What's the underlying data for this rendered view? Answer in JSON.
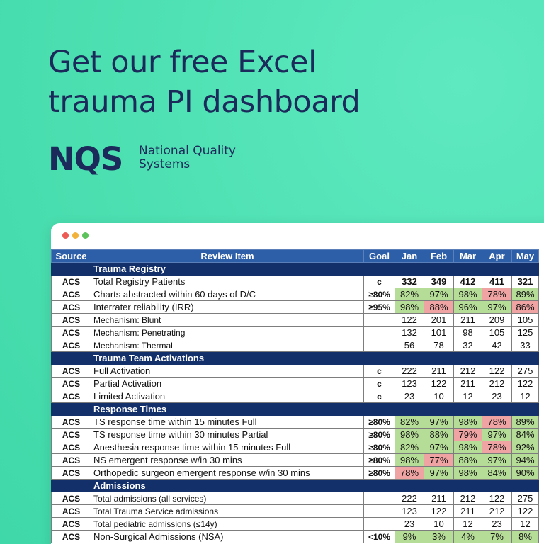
{
  "headline": {
    "line1": "Get our free Excel",
    "line2": "trauma PI dashboard"
  },
  "brand": {
    "logo": "NQS",
    "name_line1": "National Quality",
    "name_line2": "Systems"
  },
  "table": {
    "headers": {
      "source": "Source",
      "item": "Review Item",
      "goal": "Goal",
      "months": [
        "Jan",
        "Feb",
        "Mar",
        "Apr",
        "May"
      ]
    },
    "status_colors": {
      "good": "#b6dd98",
      "bad": "#efa3a3"
    },
    "sections": [
      {
        "title": "Trauma Registry",
        "rows": [
          {
            "source": "ACS",
            "item": "Total Registry Patients",
            "goal": "c",
            "bold": true,
            "values": [
              "332",
              "349",
              "412",
              "411",
              "321"
            ],
            "status": [
              "",
              "",
              "",
              "",
              ""
            ]
          },
          {
            "source": "ACS",
            "item": "Charts abstracted within 60 days of D/C",
            "goal": "≥80%",
            "values": [
              "82%",
              "97%",
              "98%",
              "78%",
              "89%"
            ],
            "status": [
              "g",
              "g",
              "g",
              "r",
              "g"
            ]
          },
          {
            "source": "ACS",
            "item": "Interrater reliability (IRR)",
            "goal": "≥95%",
            "values": [
              "98%",
              "88%",
              "96%",
              "97%",
              "86%"
            ],
            "status": [
              "g",
              "r",
              "g",
              "g",
              "r"
            ]
          },
          {
            "source": "ACS",
            "item": "Mechanism: Blunt",
            "goal": "",
            "small": true,
            "values": [
              "122",
              "201",
              "211",
              "209",
              "105"
            ],
            "status": [
              "",
              "",
              "",
              "",
              ""
            ]
          },
          {
            "source": "ACS",
            "item": "Mechanism: Penetrating",
            "goal": "",
            "small": true,
            "values": [
              "132",
              "101",
              "98",
              "105",
              "125"
            ],
            "status": [
              "",
              "",
              "",
              "",
              ""
            ]
          },
          {
            "source": "ACS",
            "item": "Mechanism: Thermal",
            "goal": "",
            "small": true,
            "values": [
              "56",
              "78",
              "32",
              "42",
              "33"
            ],
            "status": [
              "",
              "",
              "",
              "",
              ""
            ]
          }
        ]
      },
      {
        "title": "Trauma Team Activations",
        "rows": [
          {
            "source": "ACS",
            "item": "Full Activation",
            "goal": "c",
            "values": [
              "222",
              "211",
              "212",
              "122",
              "275"
            ],
            "status": [
              "",
              "",
              "",
              "",
              ""
            ]
          },
          {
            "source": "ACS",
            "item": "Partial Activation",
            "goal": "c",
            "values": [
              "123",
              "122",
              "211",
              "212",
              "122"
            ],
            "status": [
              "",
              "",
              "",
              "",
              ""
            ]
          },
          {
            "source": "ACS",
            "item": "Limited Activation",
            "goal": "c",
            "values": [
              "23",
              "10",
              "12",
              "23",
              "12"
            ],
            "status": [
              "",
              "",
              "",
              "",
              ""
            ]
          }
        ]
      },
      {
        "title": "Response Times",
        "rows": [
          {
            "source": "ACS",
            "item": "TS response time within 15 minutes Full",
            "goal": "≥80%",
            "values": [
              "82%",
              "97%",
              "98%",
              "78%",
              "89%"
            ],
            "status": [
              "g",
              "g",
              "g",
              "r",
              "g"
            ]
          },
          {
            "source": "ACS",
            "item": "TS response time within 30 minutes Partial",
            "goal": "≥80%",
            "values": [
              "98%",
              "88%",
              "79%",
              "97%",
              "84%"
            ],
            "status": [
              "g",
              "g",
              "r",
              "g",
              "g"
            ]
          },
          {
            "source": "ACS",
            "item": "Anesthesia response time within 15 minutes Full",
            "goal": "≥80%",
            "values": [
              "82%",
              "97%",
              "98%",
              "78%",
              "92%"
            ],
            "status": [
              "g",
              "g",
              "g",
              "r",
              "g"
            ]
          },
          {
            "source": "ACS",
            "item": "NS emergent response w/in 30 mins",
            "goal": "≥80%",
            "values": [
              "98%",
              "77%",
              "88%",
              "97%",
              "94%"
            ],
            "status": [
              "g",
              "r",
              "g",
              "g",
              "g"
            ]
          },
          {
            "source": "ACS",
            "item": "Orthopedic surgeon emergent response w/in 30 mins",
            "goal": "≥80%",
            "values": [
              "78%",
              "97%",
              "98%",
              "84%",
              "90%"
            ],
            "status": [
              "r",
              "g",
              "g",
              "g",
              "g"
            ]
          }
        ]
      },
      {
        "title": "Admissions",
        "rows": [
          {
            "source": "ACS",
            "item": "Total admissions (all services)",
            "goal": "",
            "small": true,
            "values": [
              "222",
              "211",
              "212",
              "122",
              "275"
            ],
            "status": [
              "",
              "",
              "",
              "",
              ""
            ]
          },
          {
            "source": "ACS",
            "item": "Total Trauma Service admissions",
            "goal": "",
            "small": true,
            "values": [
              "123",
              "122",
              "211",
              "212",
              "122"
            ],
            "status": [
              "",
              "",
              "",
              "",
              ""
            ]
          },
          {
            "source": "ACS",
            "item": "Total pediatric admissions (≤14y)",
            "goal": "",
            "small": true,
            "values": [
              "23",
              "10",
              "12",
              "23",
              "12"
            ],
            "status": [
              "",
              "",
              "",
              "",
              ""
            ]
          },
          {
            "source": "ACS",
            "item": "Non-Surgical Admissions (NSA)",
            "goal": "<10%",
            "values": [
              "9%",
              "3%",
              "4%",
              "7%",
              "8%"
            ],
            "status": [
              "g",
              "g",
              "g",
              "g",
              "g"
            ]
          }
        ]
      }
    ]
  }
}
